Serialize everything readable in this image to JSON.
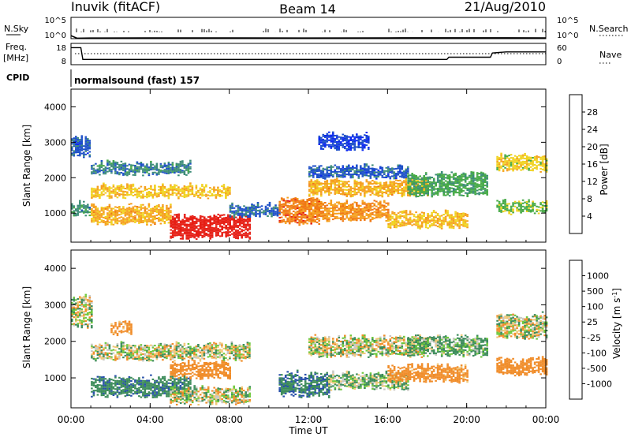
{
  "header": {
    "station": "Inuvik (fitACF)",
    "beam": "Beam 14",
    "date": "21/Aug/2010"
  },
  "noise_panel": {
    "left_label": "N.Sky",
    "right_label": "N.Search",
    "left_ticks": [
      "10^5",
      "10^0"
    ],
    "right_ticks": [
      "10^5",
      "10^0"
    ]
  },
  "freq_panel": {
    "left_label_1": "Freq.",
    "left_label_2": "[MHz]",
    "right_label": "Nave",
    "left_ticks": [
      "18",
      "8"
    ],
    "right_ticks": [
      "60",
      "0"
    ]
  },
  "cpid": {
    "label": "CPID",
    "program": "normalsound (fast) 157"
  },
  "power_panel": {
    "ylabel": "Slant Range [km]",
    "yticks": [
      "1000",
      "2000",
      "3000",
      "4000"
    ],
    "colorbar_title": "Power [dB]",
    "colorbar_ticks": [
      "4",
      "8",
      "12",
      "16",
      "20",
      "24",
      "28"
    ],
    "colors": [
      "#0a28f0",
      "#1e50c8",
      "#3c8c78",
      "#46aa46",
      "#f0d21e",
      "#f5a01e",
      "#f07814",
      "#e61e14"
    ]
  },
  "velocity_panel": {
    "ylabel": "Slant Range [km]",
    "yticks": [
      "1000",
      "2000",
      "3000",
      "4000"
    ],
    "colorbar_title": "Velocity [m s",
    "colorbar_sup": "-1",
    "colorbar_ticks": [
      "-1000",
      "-500",
      "-100",
      "-25",
      "25",
      "100",
      "500",
      "1000"
    ],
    "colors": [
      "#e61e14",
      "#f05a14",
      "#f08c28",
      "#f0c878",
      "#c8c8c3",
      "#6ec83c",
      "#3c8c5a",
      "#2850aa",
      "#1e3cc8"
    ]
  },
  "xaxis": {
    "label": "Time UT",
    "ticks": [
      "00:00",
      "04:00",
      "08:00",
      "12:00",
      "16:00",
      "20:00",
      "00:00"
    ]
  },
  "chart_data": [
    {
      "type": "heatmap",
      "title": "Power [dB]",
      "xlabel": "Time UT",
      "ylabel": "Slant Range [km]",
      "xlim": [
        0,
        24
      ],
      "ylim": [
        180,
        4500
      ],
      "zlim": [
        0,
        30
      ],
      "bands": [
        {
          "t0": 0.0,
          "t1": 0.9,
          "r0": 2600,
          "r1": 3100,
          "v": 6
        },
        {
          "t0": 0.0,
          "t1": 0.9,
          "r0": 950,
          "r1": 1250,
          "v": 10
        },
        {
          "t0": 1.0,
          "t1": 8.0,
          "r0": 1450,
          "r1": 1750,
          "v": 18
        },
        {
          "t0": 1.0,
          "t1": 5.0,
          "r0": 700,
          "r1": 1200,
          "v": 20
        },
        {
          "t0": 5.0,
          "t1": 9.0,
          "r0": 300,
          "r1": 900,
          "v": 29
        },
        {
          "t0": 8.0,
          "t1": 10.5,
          "r0": 900,
          "r1": 1200,
          "v": 7
        },
        {
          "t0": 1.0,
          "t1": 6.0,
          "r0": 2100,
          "r1": 2400,
          "v": 9
        },
        {
          "t0": 10.5,
          "t1": 12.5,
          "r0": 700,
          "r1": 1400,
          "v": 24
        },
        {
          "t0": 12.0,
          "t1": 16.0,
          "r0": 800,
          "r1": 1300,
          "v": 22
        },
        {
          "t0": 12.0,
          "t1": 18.0,
          "r0": 1500,
          "r1": 1900,
          "v": 20
        },
        {
          "t0": 12.0,
          "t1": 17.0,
          "r0": 2000,
          "r1": 2300,
          "v": 6
        },
        {
          "t0": 16.0,
          "t1": 20.0,
          "r0": 600,
          "r1": 1000,
          "v": 19
        },
        {
          "t0": 17.0,
          "t1": 21.0,
          "r0": 1500,
          "r1": 2100,
          "v": 12
        },
        {
          "t0": 21.5,
          "t1": 24.0,
          "r0": 1000,
          "r1": 1300,
          "v": 14
        },
        {
          "t0": 21.5,
          "t1": 24.0,
          "r0": 2200,
          "r1": 2600,
          "v": 17
        },
        {
          "t0": 12.5,
          "t1": 15.0,
          "r0": 2800,
          "r1": 3200,
          "v": 4
        }
      ]
    },
    {
      "type": "heatmap",
      "title": "Velocity [m s-1]",
      "xlabel": "Time UT",
      "ylabel": "Slant Range [km]",
      "xlim": [
        0,
        24
      ],
      "ylim": [
        180,
        4500
      ],
      "zlim": [
        -1000,
        1000
      ],
      "bands": [
        {
          "t0": 0.0,
          "t1": 1.0,
          "r0": 2400,
          "r1": 3200,
          "v": 0
        },
        {
          "t0": 1.0,
          "t1": 6.0,
          "r0": 500,
          "r1": 1000,
          "v": 400
        },
        {
          "t0": 5.0,
          "t1": 9.0,
          "r0": 300,
          "r1": 700,
          "v": 0
        },
        {
          "t0": 5.0,
          "t1": 8.0,
          "r0": 1000,
          "r1": 1400,
          "v": -300
        },
        {
          "t0": 1.0,
          "t1": 9.0,
          "r0": 1500,
          "r1": 1900,
          "v": 0
        },
        {
          "t0": 2.0,
          "t1": 3.0,
          "r0": 2200,
          "r1": 2500,
          "v": -200
        },
        {
          "t0": 10.5,
          "t1": 13.0,
          "r0": 500,
          "r1": 1100,
          "v": 450
        },
        {
          "t0": 13.0,
          "t1": 17.0,
          "r0": 700,
          "r1": 1100,
          "v": 80
        },
        {
          "t0": 16.0,
          "t1": 20.0,
          "r0": 900,
          "r1": 1300,
          "v": -250
        },
        {
          "t0": 12.0,
          "t1": 18.0,
          "r0": 1600,
          "r1": 2100,
          "v": 0
        },
        {
          "t0": 17.0,
          "t1": 21.0,
          "r0": 1600,
          "r1": 2100,
          "v": 120
        },
        {
          "t0": 21.5,
          "t1": 24.0,
          "r0": 1100,
          "r1": 1500,
          "v": -300
        },
        {
          "t0": 21.5,
          "t1": 24.0,
          "r0": 2100,
          "r1": 2700,
          "v": 0
        }
      ]
    },
    {
      "type": "line",
      "title": "N.Sky",
      "ylabel": "N.Sky",
      "x": [
        0,
        0.3,
        1,
        4,
        8,
        12,
        16,
        20,
        22,
        24
      ],
      "values": [
        5,
        1.3,
        1.4,
        1.5,
        1.5,
        1.4,
        1.5,
        1.6,
        1.6,
        1.5
      ]
    },
    {
      "type": "line",
      "title": "Freq.",
      "ylabel": "Freq. [MHz]",
      "ylim": [
        8,
        18
      ],
      "x": [
        0,
        0.5,
        0.6,
        19.0,
        19.1,
        21.2,
        21.3,
        22.0,
        24
      ],
      "values": [
        16,
        16,
        10.5,
        10.5,
        11.5,
        11.5,
        13.5,
        14,
        14
      ]
    }
  ]
}
